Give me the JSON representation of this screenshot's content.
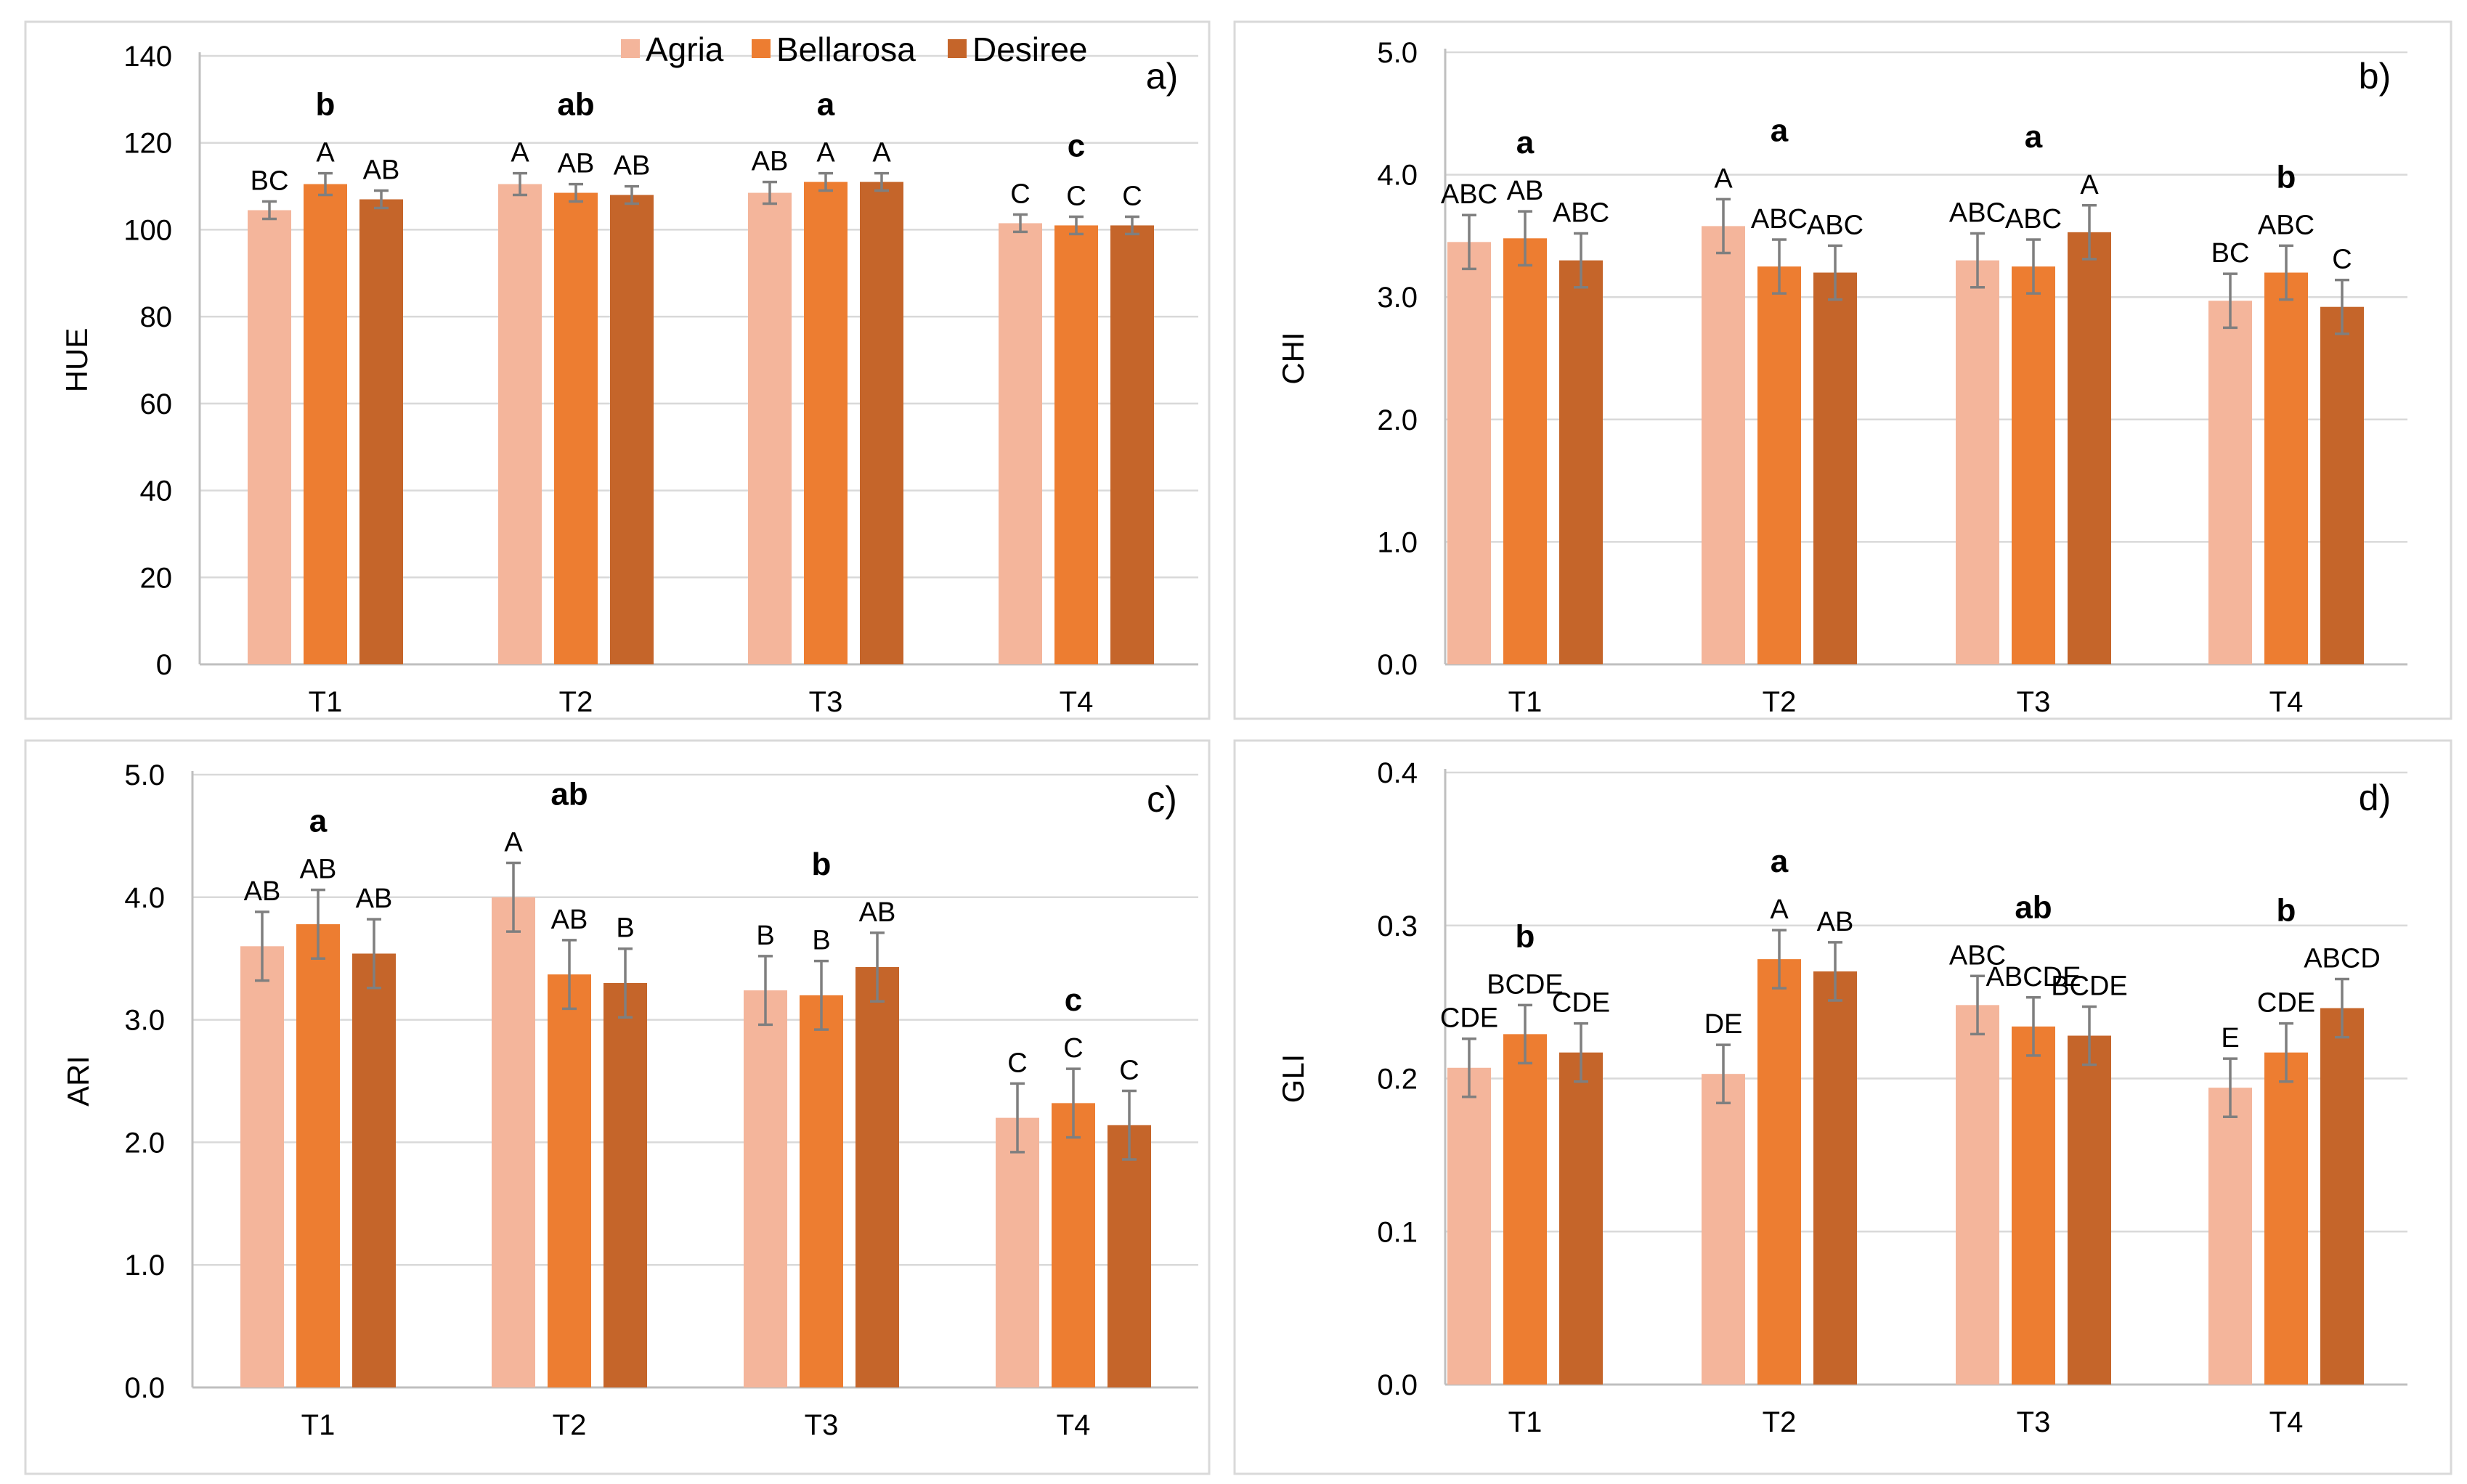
{
  "colors": {
    "Agria": "#f4b59b",
    "Bellarosa": "#ed7d31",
    "Desiree": "#c5652a"
  },
  "legend": [
    "Agria",
    "Bellarosa",
    "Desiree"
  ],
  "chart_data": [
    {
      "id": "a",
      "type": "bar",
      "panel_label": "a)",
      "ylabel": "HUE",
      "categories": [
        "T1",
        "T2",
        "T3",
        "T4"
      ],
      "ylim": [
        0,
        140
      ],
      "yticks": [
        "0",
        "20",
        "40",
        "60",
        "80",
        "100",
        "120",
        "140"
      ],
      "group_letters": [
        "b",
        "ab",
        "a",
        "c"
      ],
      "series": [
        {
          "name": "Agria",
          "values": [
            104.5,
            110.5,
            108.5,
            101.5
          ],
          "errors": [
            2,
            2.5,
            2.5,
            2
          ],
          "letters": [
            "BC",
            "A",
            "AB",
            "C"
          ]
        },
        {
          "name": "Bellarosa",
          "values": [
            110.5,
            108.5,
            111,
            101
          ],
          "errors": [
            2.5,
            2,
            2,
            2
          ],
          "letters": [
            "A",
            "AB",
            "A",
            "C"
          ]
        },
        {
          "name": "Desiree",
          "values": [
            107,
            108,
            111,
            101
          ],
          "errors": [
            2,
            2,
            2,
            2
          ],
          "letters": [
            "AB",
            "AB",
            "A",
            "C"
          ]
        }
      ]
    },
    {
      "id": "b",
      "type": "bar",
      "panel_label": "b)",
      "ylabel": "CHI",
      "categories": [
        "T1",
        "T2",
        "T3",
        "T4"
      ],
      "ylim": [
        0,
        5
      ],
      "yticks": [
        "0.0",
        "1.0",
        "2.0",
        "3.0",
        "4.0",
        "5.0"
      ],
      "group_letters": [
        "a",
        "a",
        "a",
        "b"
      ],
      "series": [
        {
          "name": "Agria",
          "values": [
            3.45,
            3.58,
            3.3,
            2.97
          ],
          "errors": [
            0.22,
            0.22,
            0.22,
            0.22
          ],
          "letters": [
            "ABC",
            "A",
            "ABC",
            "BC"
          ]
        },
        {
          "name": "Bellarosa",
          "values": [
            3.48,
            3.25,
            3.25,
            3.2
          ],
          "errors": [
            0.22,
            0.22,
            0.22,
            0.22
          ],
          "letters": [
            "AB",
            "ABC",
            "ABC",
            "ABC"
          ]
        },
        {
          "name": "Desiree",
          "values": [
            3.3,
            3.2,
            3.53,
            2.92
          ],
          "errors": [
            0.22,
            0.22,
            0.22,
            0.22
          ],
          "letters": [
            "ABC",
            "ABC",
            "A",
            "C"
          ]
        }
      ]
    },
    {
      "id": "c",
      "type": "bar",
      "panel_label": "c)",
      "ylabel": "ARI",
      "categories": [
        "T1",
        "T2",
        "T3",
        "T4"
      ],
      "ylim": [
        0,
        5
      ],
      "yticks": [
        "0.0",
        "1.0",
        "2.0",
        "3.0",
        "4.0",
        "5.0"
      ],
      "group_letters": [
        "a",
        "ab",
        "b",
        "c"
      ],
      "series": [
        {
          "name": "Agria",
          "values": [
            3.6,
            4.0,
            3.24,
            2.2
          ],
          "errors": [
            0.28,
            0.28,
            0.28,
            0.28
          ],
          "letters": [
            "AB",
            "A",
            "B",
            "C"
          ]
        },
        {
          "name": "Bellarosa",
          "values": [
            3.78,
            3.37,
            3.2,
            2.32
          ],
          "errors": [
            0.28,
            0.28,
            0.28,
            0.28
          ],
          "letters": [
            "AB",
            "AB",
            "B",
            "C"
          ]
        },
        {
          "name": "Desiree",
          "values": [
            3.54,
            3.3,
            3.43,
            2.14
          ],
          "errors": [
            0.28,
            0.28,
            0.28,
            0.28
          ],
          "letters": [
            "AB",
            "B",
            "AB",
            "C"
          ]
        }
      ]
    },
    {
      "id": "d",
      "type": "bar",
      "panel_label": "d)",
      "ylabel": "GLI",
      "categories": [
        "T1",
        "T2",
        "T3",
        "T4"
      ],
      "ylim": [
        0,
        0.4
      ],
      "yticks": [
        "0.0",
        "0.1",
        "0.2",
        "0.3",
        "0.4"
      ],
      "group_letters": [
        "b",
        "a",
        "ab",
        "b"
      ],
      "series": [
        {
          "name": "Agria",
          "values": [
            0.207,
            0.203,
            0.248,
            0.194
          ],
          "errors": [
            0.019,
            0.019,
            0.019,
            0.019
          ],
          "letters": [
            "CDE",
            "DE",
            "ABC",
            "E"
          ]
        },
        {
          "name": "Bellarosa",
          "values": [
            0.229,
            0.278,
            0.234,
            0.217
          ],
          "errors": [
            0.019,
            0.019,
            0.019,
            0.019
          ],
          "letters": [
            "BCDE",
            "A",
            "ABCDE",
            "CDE"
          ]
        },
        {
          "name": "Desiree",
          "values": [
            0.217,
            0.27,
            0.228,
            0.246
          ],
          "errors": [
            0.019,
            0.019,
            0.019,
            0.019
          ],
          "letters": [
            "CDE",
            "AB",
            "BCDE",
            "ABCD"
          ]
        }
      ]
    }
  ]
}
